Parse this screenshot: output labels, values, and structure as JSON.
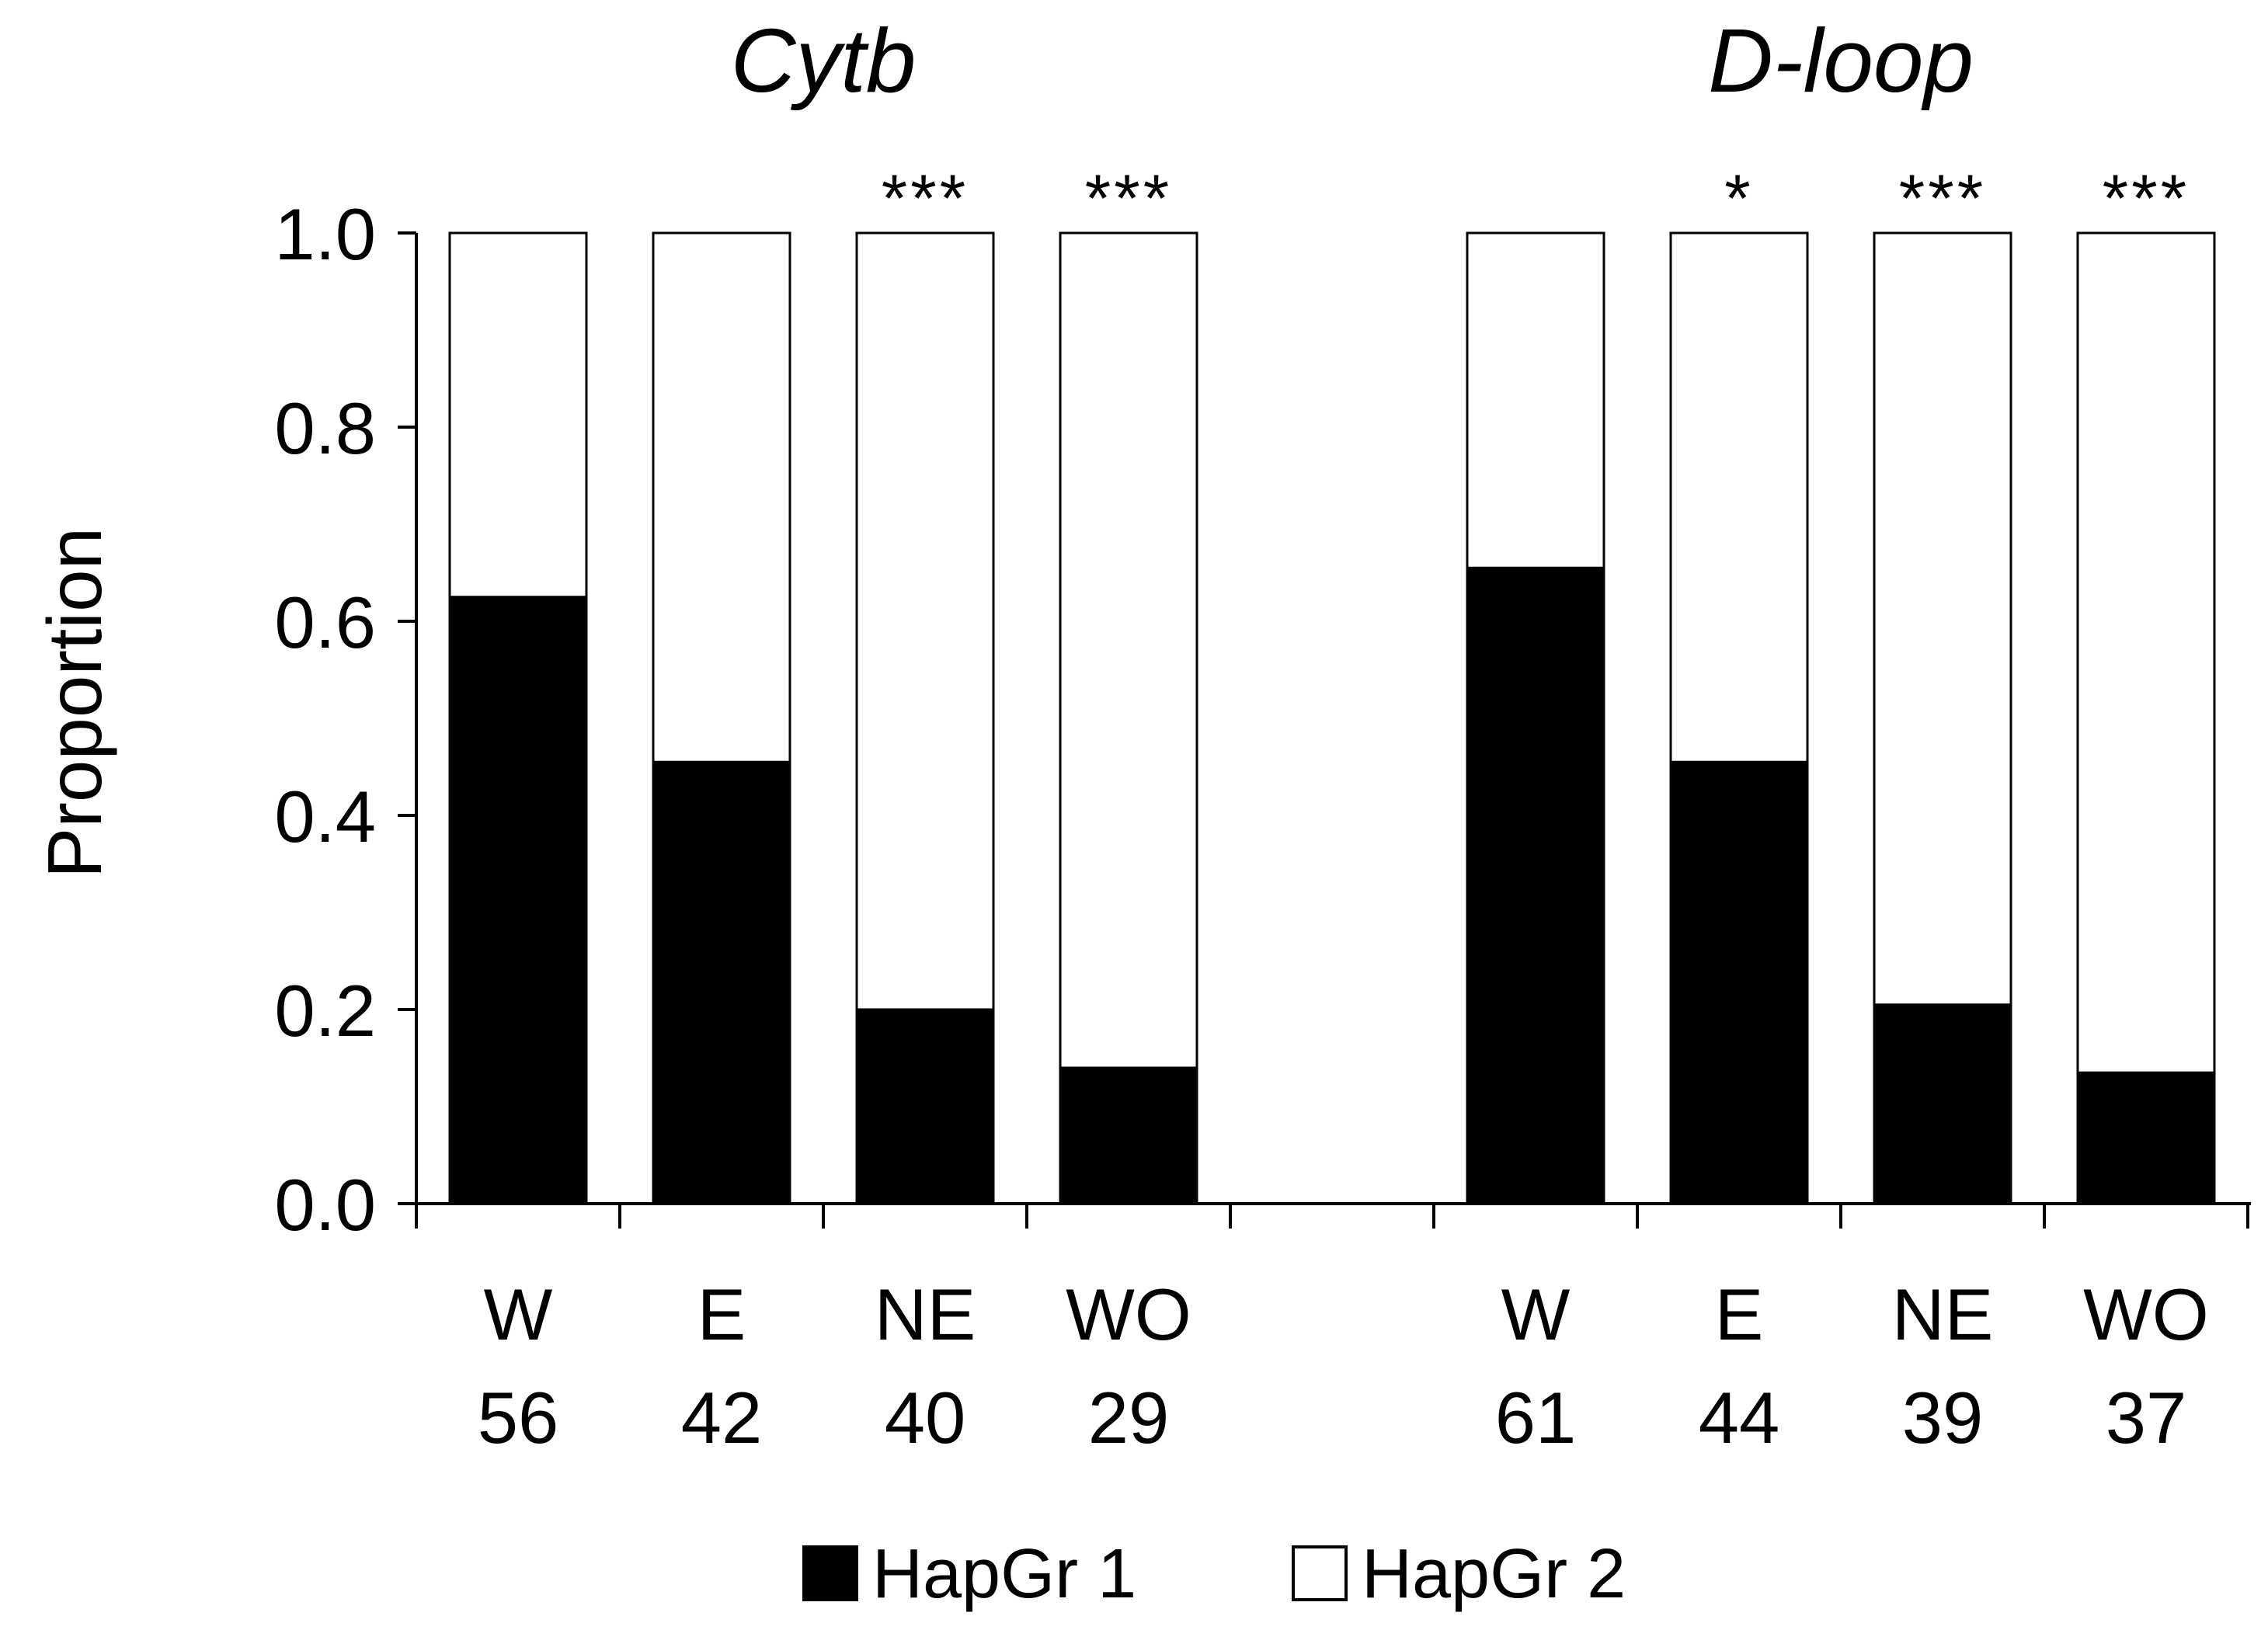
{
  "chart_data": {
    "type": "bar",
    "stacked": true,
    "ylabel": "Proportion",
    "ylim": [
      0,
      1
    ],
    "yticks": [
      "0.0",
      "0.2",
      "0.4",
      "0.6",
      "0.8",
      "1.0"
    ],
    "ytick_values": [
      0,
      0.2,
      0.4,
      0.6,
      0.8,
      1.0
    ],
    "colors": {
      "HapGr1": "#000000",
      "HapGr2": "#ffffff",
      "axis": "#000000"
    },
    "legend": {
      "position": "bottom-center",
      "entries": [
        {
          "label": "HapGr 1",
          "color": "#000000"
        },
        {
          "label": "HapGr 2",
          "color": "#ffffff"
        }
      ]
    },
    "panels": [
      {
        "title": "Cytb",
        "categories": [
          "W",
          "E",
          "NE",
          "WO"
        ],
        "n": [
          "56",
          "42",
          "40",
          "29"
        ],
        "significance": [
          "",
          "",
          "***",
          "***"
        ],
        "series": [
          {
            "name": "HapGr 1",
            "values": [
              0.625,
              0.455,
              0.2,
              0.14
            ]
          },
          {
            "name": "HapGr 2",
            "values": [
              0.375,
              0.545,
              0.8,
              0.86
            ]
          }
        ]
      },
      {
        "title": "D-loop",
        "categories": [
          "W",
          "E",
          "NE",
          "WO"
        ],
        "n": [
          "61",
          "44",
          "39",
          "37"
        ],
        "significance": [
          "",
          "*",
          "***",
          "***"
        ],
        "series": [
          {
            "name": "HapGr 1",
            "values": [
              0.655,
              0.455,
              0.205,
              0.135
            ]
          },
          {
            "name": "HapGr 2",
            "values": [
              0.345,
              0.545,
              0.795,
              0.865
            ]
          }
        ]
      }
    ]
  }
}
